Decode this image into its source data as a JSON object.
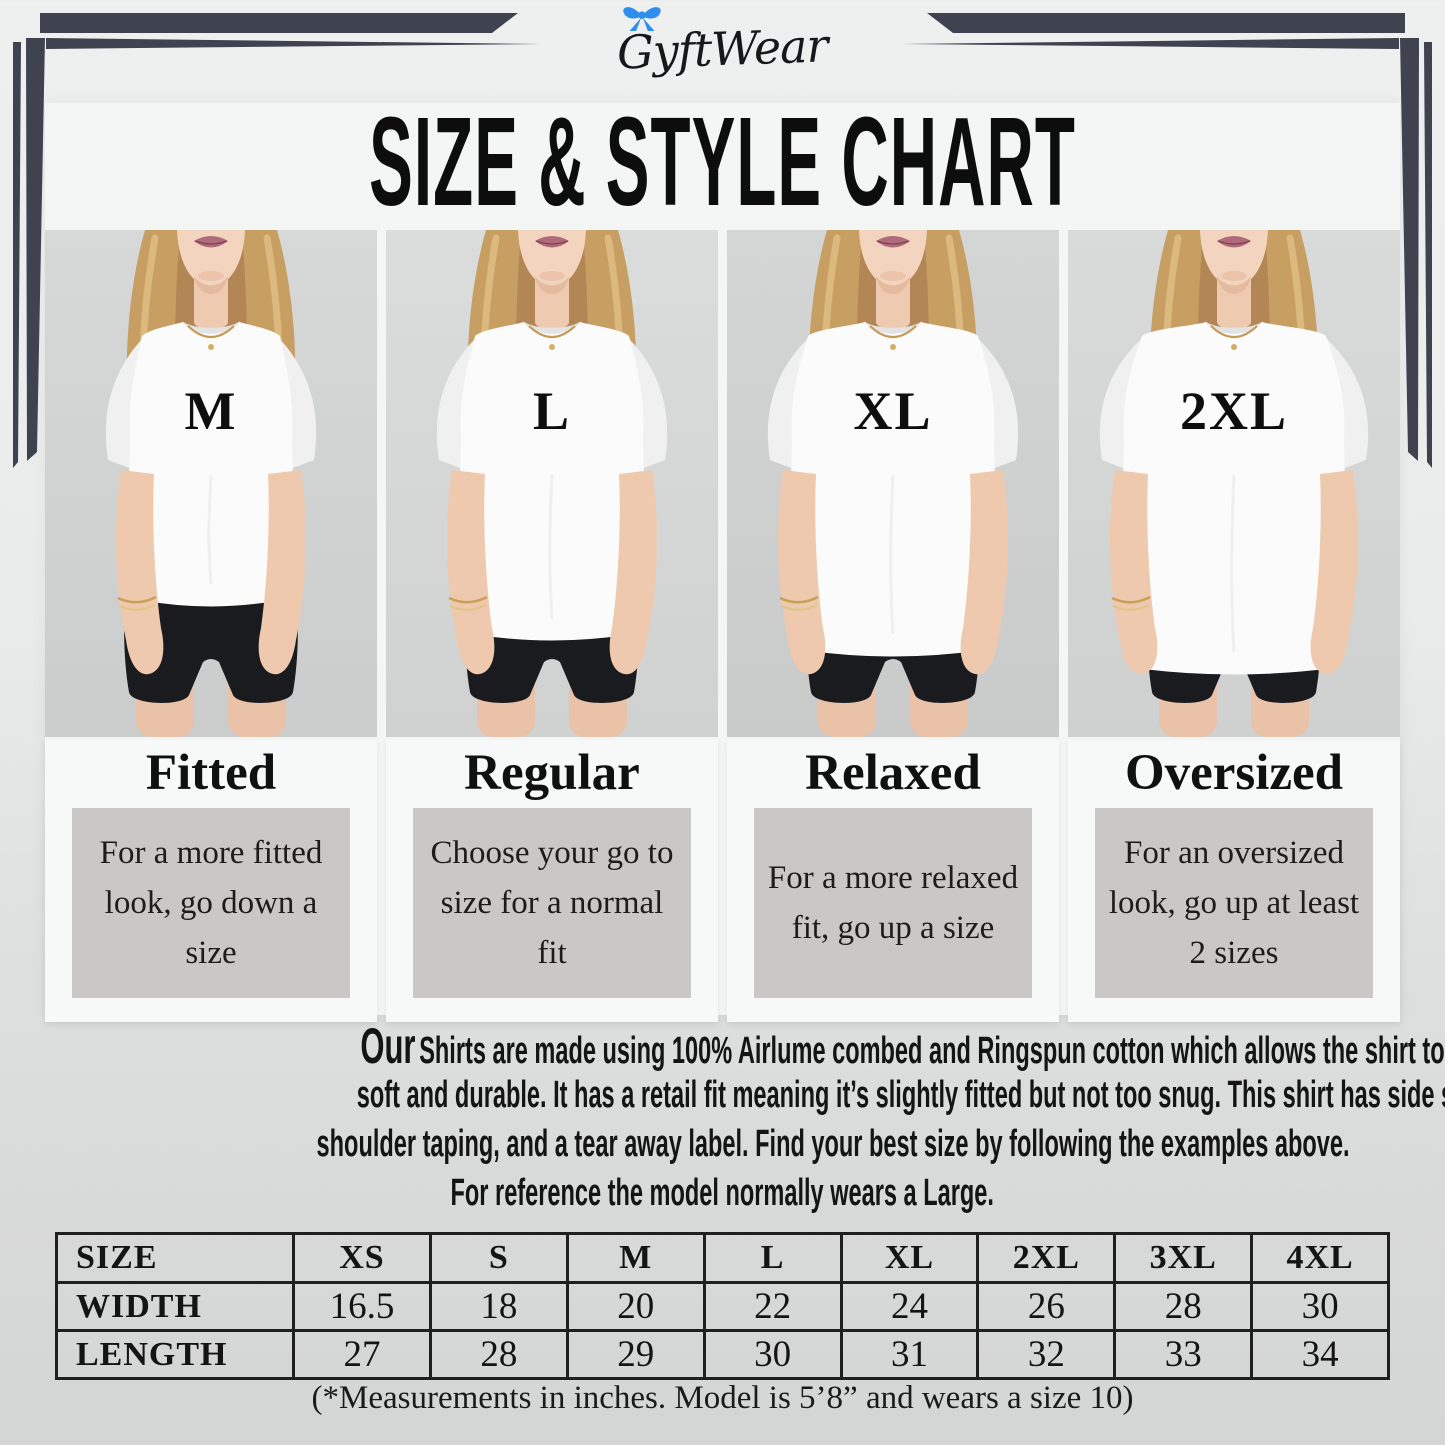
{
  "brand": {
    "logo_text": "GyftWear",
    "bow_icon": "ribbon-bow-icon",
    "bow_color": "#2f8ded"
  },
  "title": "SIZE & STYLE CHART",
  "figures": [
    {
      "size_label": "M",
      "style": {
        "name": "Fitted",
        "description": "For a more fitted look, go down a size"
      }
    },
    {
      "size_label": "L",
      "style": {
        "name": "Regular",
        "description": "Choose your go to size for a normal fit"
      }
    },
    {
      "size_label": "XL",
      "style": {
        "name": "Relaxed",
        "description": "For a more relaxed fit, go up a size"
      }
    },
    {
      "size_label": "2XL",
      "style": {
        "name": "Oversized",
        "description": "For an oversized look, go up at least 2 sizes"
      }
    }
  ],
  "paragraph": {
    "lead_word": "Our",
    "lines": [
      "Shirts are made using 100% Airlume combed and Ringspun cotton which allows the shirt to be both",
      "soft and durable. It has a retail fit meaning it’s slightly fitted but not too snug. This shirt has side seams,",
      "shoulder taping, and a tear away label. Find your best size by following the examples above.",
      "For reference the model normally wears a Large."
    ]
  },
  "size_table": {
    "columns": [
      "SIZE",
      "XS",
      "S",
      "M",
      "L",
      "XL",
      "2XL",
      "3XL",
      "4XL"
    ],
    "rows": [
      {
        "label": "WIDTH",
        "values": [
          "16.5",
          "18",
          "20",
          "22",
          "24",
          "26",
          "28",
          "30"
        ]
      },
      {
        "label": "LENGTH",
        "values": [
          "27",
          "28",
          "29",
          "30",
          "31",
          "32",
          "33",
          "34"
        ]
      }
    ]
  },
  "footnote": "(*Measurements in inches. Model is 5’8” and wears a size 10)",
  "colors": {
    "frame_accent": "#3f4350",
    "card_box": "#c9c8c7",
    "photo_background": "#d4d6d6",
    "accent_blue": "#2f8ded"
  }
}
